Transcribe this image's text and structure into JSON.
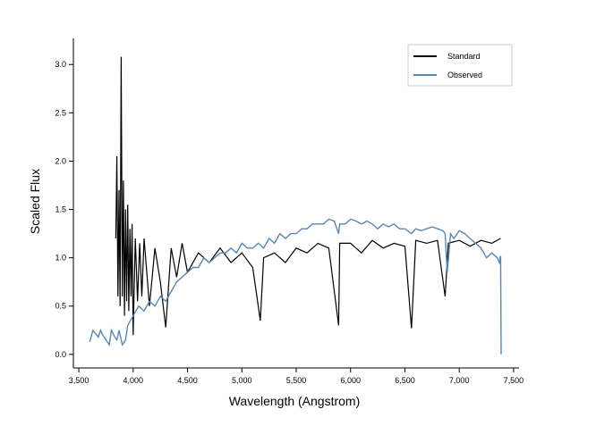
{
  "chart_data": {
    "type": "line",
    "title": "",
    "xlabel": "Wavelength (Angstrom)",
    "ylabel": "Scaled Flux",
    "xlim": [
      3450,
      7550
    ],
    "ylim": [
      -0.14,
      3.27
    ],
    "x_ticks": [
      3500,
      4000,
      4500,
      5000,
      5500,
      6000,
      6500,
      7000,
      7500
    ],
    "x_tick_labels": [
      "3,500",
      "4,000",
      "4,500",
      "5,000",
      "5,500",
      "6,000",
      "6,500",
      "7,000",
      "7,500"
    ],
    "y_ticks": [
      0.0,
      0.5,
      1.0,
      1.5,
      2.0,
      2.5,
      3.0
    ],
    "y_tick_labels": [
      "0.0",
      "0.5",
      "1.0",
      "1.5",
      "2.0",
      "2.5",
      "3.0"
    ],
    "grid": false,
    "legend_position": "top-right",
    "series": [
      {
        "name": "Standard",
        "color": "#000000",
        "x": [
          3840,
          3850,
          3860,
          3870,
          3880,
          3890,
          3900,
          3910,
          3920,
          3930,
          3940,
          3950,
          3960,
          3970,
          3980,
          3990,
          4000,
          4020,
          4040,
          4060,
          4080,
          4100,
          4150,
          4200,
          4250,
          4300,
          4350,
          4400,
          4450,
          4500,
          4600,
          4700,
          4800,
          4900,
          5000,
          5100,
          5170,
          5200,
          5300,
          5400,
          5500,
          5600,
          5700,
          5800,
          5890,
          5900,
          6000,
          6100,
          6200,
          6300,
          6400,
          6500,
          6560,
          6600,
          6700,
          6800,
          6870,
          6900,
          7000,
          7100,
          7200,
          7300,
          7380
        ],
        "y": [
          1.2,
          2.05,
          0.6,
          1.7,
          0.5,
          3.08,
          0.6,
          1.8,
          0.4,
          1.5,
          0.55,
          1.55,
          0.45,
          1.3,
          0.6,
          1.35,
          0.2,
          1.2,
          0.55,
          1.15,
          0.6,
          1.2,
          0.5,
          1.1,
          0.75,
          0.28,
          1.1,
          0.8,
          1.15,
          0.85,
          1.05,
          0.95,
          1.1,
          0.95,
          1.05,
          0.9,
          0.35,
          1.0,
          1.05,
          0.95,
          1.1,
          1.05,
          1.15,
          1.1,
          0.3,
          1.15,
          1.15,
          1.05,
          1.18,
          1.1,
          1.15,
          1.12,
          0.27,
          1.18,
          1.15,
          1.18,
          0.6,
          1.15,
          1.18,
          1.12,
          1.18,
          1.15,
          1.2
        ]
      },
      {
        "name": "Observed",
        "color": "#5a86b0",
        "x": [
          3600,
          3630,
          3650,
          3680,
          3700,
          3720,
          3750,
          3780,
          3800,
          3830,
          3850,
          3870,
          3900,
          3930,
          3950,
          4000,
          4050,
          4100,
          4150,
          4200,
          4250,
          4300,
          4350,
          4400,
          4450,
          4500,
          4550,
          4600,
          4650,
          4700,
          4750,
          4800,
          4850,
          4900,
          4950,
          5000,
          5050,
          5100,
          5150,
          5200,
          5250,
          5300,
          5350,
          5400,
          5450,
          5500,
          5550,
          5600,
          5650,
          5700,
          5750,
          5800,
          5850,
          5890,
          5900,
          5950,
          6000,
          6050,
          6100,
          6150,
          6200,
          6250,
          6300,
          6350,
          6400,
          6450,
          6500,
          6560,
          6600,
          6650,
          6700,
          6750,
          6800,
          6850,
          6870,
          6890,
          6920,
          6950,
          7000,
          7050,
          7100,
          7150,
          7200,
          7250,
          7300,
          7350,
          7370,
          7380,
          7385
        ],
        "y": [
          0.13,
          0.25,
          0.22,
          0.18,
          0.25,
          0.2,
          0.15,
          0.1,
          0.25,
          0.18,
          0.15,
          0.25,
          0.1,
          0.15,
          0.3,
          0.4,
          0.5,
          0.45,
          0.55,
          0.5,
          0.6,
          0.55,
          0.65,
          0.75,
          0.8,
          0.85,
          0.9,
          0.9,
          1.0,
          0.95,
          1.0,
          1.05,
          1.05,
          1.1,
          1.05,
          1.15,
          1.1,
          1.1,
          1.15,
          1.1,
          1.2,
          1.15,
          1.25,
          1.2,
          1.25,
          1.25,
          1.3,
          1.3,
          1.35,
          1.35,
          1.35,
          1.4,
          1.38,
          1.25,
          1.35,
          1.35,
          1.4,
          1.38,
          1.35,
          1.38,
          1.35,
          1.3,
          1.35,
          1.32,
          1.35,
          1.3,
          1.3,
          1.25,
          1.3,
          1.28,
          1.3,
          1.32,
          1.3,
          1.28,
          1.25,
          0.85,
          1.25,
          1.2,
          1.28,
          1.25,
          1.2,
          1.15,
          1.1,
          1.0,
          1.05,
          1.0,
          0.95,
          1.02,
          0.0
        ]
      }
    ]
  }
}
